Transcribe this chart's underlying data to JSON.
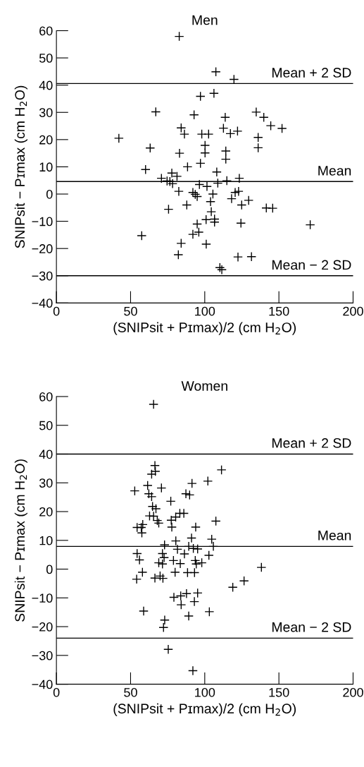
{
  "chart_data": [
    {
      "type": "scatter",
      "title": "Men",
      "xlabel": "(SNIPsit + Pɪmax)/2 (cm H$_{2}$O)",
      "ylabel": "SNIPsit − Pɪmax (cm H$_{2}$O)",
      "xlim": [
        0,
        200
      ],
      "ylim": [
        -40,
        60
      ],
      "xticks": [
        0,
        50,
        100,
        150,
        200
      ],
      "yticks": [
        -40,
        -30,
        -20,
        -10,
        0,
        10,
        20,
        30,
        40,
        50,
        60
      ],
      "marker": "cross",
      "grid": false,
      "series": [
        {
          "color": "#000000",
          "x": [
            82.8,
            107.5,
            119.7,
            106.2,
            97.1,
            67.0,
            92.8,
            113.8,
            134.7,
            139.8,
            144.5,
            152.1,
            84.1,
            86.3,
            98.0,
            102.6,
            112.6,
            117.3,
            122.1,
            136.0,
            136.0,
            42.1,
            63.2,
            100.2,
            83.0,
            100.2,
            114.2,
            114.2,
            60.1,
            97.1,
            88.4,
            108.1,
            70.8,
            74.6,
            76.5,
            77.8,
            81.3,
            78.3,
            123.3,
            96.4,
            101.5,
            108.8,
            114.9,
            82.5,
            92.0,
            93.6,
            94.9,
            105.5,
            120.5,
            122.8,
            118.1,
            129.6,
            103.9,
            87.9,
            124.9,
            75.6,
            141.5,
            145.8,
            104.4,
            100.9,
            106.6,
            106.6,
            94.9,
            124.4,
            171.1,
            57.5,
            92.0,
            96.0,
            84.1,
            101.0,
            82.2,
            122.4,
            131.5,
            110.2,
            111.5
          ],
          "values": [
            57.9,
            44.9,
            42.1,
            37.0,
            35.9,
            30.2,
            29.1,
            28.2,
            30.1,
            28.2,
            25.1,
            24.1,
            24.3,
            22.0,
            22.0,
            22.0,
            24.2,
            22.2,
            23.1,
            20.8,
            17.0,
            20.5,
            16.9,
            17.9,
            15.0,
            15.1,
            15.8,
            12.8,
            9.0,
            11.3,
            10.0,
            8.1,
            5.8,
            4.8,
            4.6,
            7.7,
            6.5,
            3.8,
            5.8,
            3.5,
            2.8,
            4.0,
            4.9,
            1.0,
            0.6,
            -0.1,
            -0.9,
            0.0,
            0.6,
            1.0,
            -1.7,
            -2.3,
            -2.8,
            -4.0,
            -4.0,
            -5.6,
            -5.1,
            -5.2,
            -6.5,
            -9.4,
            -9.2,
            -10.3,
            -11.0,
            -10.7,
            -11.3,
            -15.3,
            -14.8,
            -14.0,
            -18.1,
            -18.4,
            -22.3,
            -23.1,
            -23.0,
            -27.0,
            -27.8
          ]
        }
      ],
      "ref_lines": [
        {
          "axis": "y",
          "value": 40.6,
          "label": "Mean + 2 SD"
        },
        {
          "axis": "y",
          "value": 4.6,
          "label": "Mean"
        },
        {
          "axis": "y",
          "value": -30,
          "label": "Mean − 2 SD"
        }
      ]
    },
    {
      "type": "scatter",
      "title": "Women",
      "xlabel": "(SNIPsit + Pɪmax)/2 (cm H$_{2}$O)",
      "ylabel": "SNIPsit − Pɪmax (cm H$_{2}$O)",
      "xlim": [
        0,
        200
      ],
      "ylim": [
        -40,
        60
      ],
      "xticks": [
        0,
        50,
        100,
        150,
        200
      ],
      "yticks": [
        -40,
        -30,
        -20,
        -10,
        0,
        10,
        20,
        30,
        40,
        50,
        60
      ],
      "marker": "cross",
      "grid": false,
      "series": [
        {
          "color": "#000000",
          "x": [
            65.5,
            66.4,
            64.2,
            66.7,
            111.3,
            102.1,
            91.4,
            61.5,
            52.8,
            70.8,
            62.3,
            64.2,
            87.3,
            89.8,
            77.1,
            64.8,
            67.1,
            62.8,
            65.5,
            68.0,
            69.0,
            54.4,
            57.2,
            58.2,
            57.6,
            77.4,
            77.8,
            80.4,
            83.2,
            85.9,
            107.5,
            93.9,
            91.1,
            104.7,
            105.8,
            80.5,
            72.9,
            89.2,
            92.3,
            95.2,
            81.6,
            54.4,
            71.5,
            86.3,
            102.8,
            56.0,
            72.6,
            78.9,
            69.0,
            71.5,
            83.5,
            93.6,
            94.3,
            98.0,
            138.2,
            58.0,
            80.0,
            88.4,
            93.1,
            54.1,
            66.4,
            69.9,
            71.8,
            118.9,
            126.5,
            79.2,
            83.8,
            87.7,
            95.2,
            93.0,
            84.1,
            58.8,
            103.1,
            89.2,
            73.0,
            72.2,
            75.4,
            92.0
          ],
          "values": [
            57.3,
            36.0,
            33.0,
            34.0,
            34.5,
            30.6,
            29.8,
            29.1,
            27.2,
            28.2,
            26.2,
            25.2,
            26.2,
            25.8,
            23.6,
            21.8,
            21.0,
            18.5,
            18.4,
            16.9,
            16.0,
            14.5,
            14.5,
            15.5,
            12.6,
            17.0,
            14.6,
            18.1,
            19.4,
            19.4,
            16.7,
            14.6,
            10.8,
            10.4,
            7.9,
            9.8,
            8.4,
            7.9,
            7.2,
            7.0,
            6.9,
            5.4,
            5.4,
            5.3,
            4.8,
            3.2,
            4.0,
            3.0,
            2.2,
            1.8,
            1.9,
            3.0,
            1.8,
            2.2,
            0.6,
            -1.1,
            -1.1,
            -1.2,
            -1.2,
            -3.5,
            -3.1,
            -2.4,
            -3.2,
            -6.3,
            -4.1,
            -9.8,
            -9.3,
            -8.5,
            -8.3,
            -11.3,
            -12.4,
            -14.6,
            -14.8,
            -16.3,
            -17.7,
            -20.3,
            -27.9,
            -35.3
          ]
        }
      ],
      "ref_lines": [
        {
          "axis": "y",
          "value": 40.0,
          "label": "Mean + 2 SD"
        },
        {
          "axis": "y",
          "value": 7.9,
          "label": "Mean"
        },
        {
          "axis": "y",
          "value": -24.0,
          "label": "Mean − 2 SD"
        }
      ]
    }
  ]
}
